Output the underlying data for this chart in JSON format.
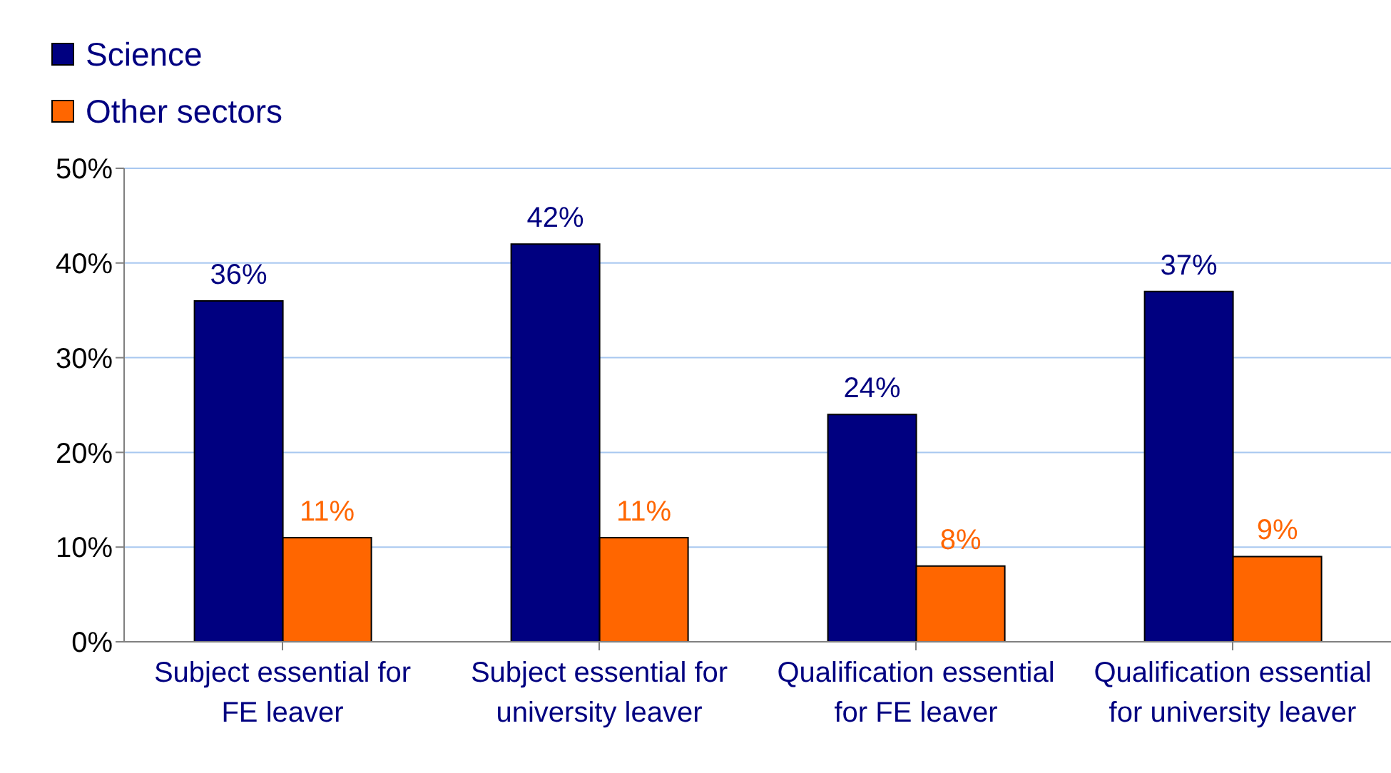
{
  "chart_data": {
    "type": "bar",
    "categories": [
      "Subject essential for FE leaver",
      "Subject essential for university leaver",
      "Qualification essential for FE leaver",
      "Qualification essential for university leaver"
    ],
    "series": [
      {
        "name": "Science",
        "color": "#000080",
        "values": [
          36,
          42,
          24,
          37
        ],
        "value_labels": [
          "36%",
          "42%",
          "24%",
          "37%"
        ]
      },
      {
        "name": "Other sectors",
        "color": "#ff6600",
        "values": [
          11,
          11,
          8,
          9
        ],
        "value_labels": [
          "11%",
          "11%",
          "8%",
          "9%"
        ]
      }
    ],
    "ylim": [
      0,
      50
    ],
    "yticks": [
      {
        "value": 0,
        "label": "0%"
      },
      {
        "value": 10,
        "label": "10%"
      },
      {
        "value": 20,
        "label": "20%"
      },
      {
        "value": 30,
        "label": "30%"
      },
      {
        "value": 40,
        "label": "40%"
      },
      {
        "value": 50,
        "label": "50%"
      }
    ],
    "grid": "y",
    "legend": "top left"
  }
}
